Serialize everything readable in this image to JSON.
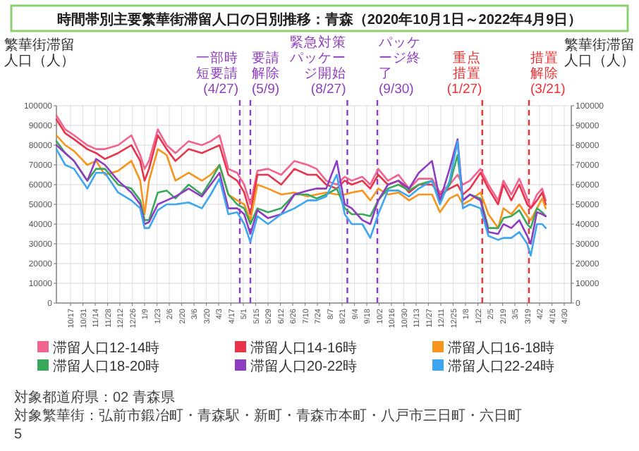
{
  "chart_data": {
    "type": "line",
    "title": "時間帯別主要繁華街滞留人口の日別推移：青森（2020年10月1日～2022年4月9日）",
    "ylabel": "繁華街滞留人口（人）",
    "y2label": "繁華街滞留人口（人）",
    "x": [
      "2020-10-01",
      "2020-10-11",
      "2020-10-21",
      "2020-11-05",
      "2020-11-15",
      "2020-11-25",
      "2020-12-10",
      "2020-12-25",
      "2021-01-04",
      "2021-01-09",
      "2021-01-14",
      "2021-01-24",
      "2021-02-03",
      "2021-02-13",
      "2021-02-28",
      "2021-03-15",
      "2021-03-25",
      "2021-04-04",
      "2021-04-14",
      "2021-04-24",
      "2021-05-02",
      "2021-05-09",
      "2021-05-17",
      "2021-05-29",
      "2021-06-13",
      "2021-06-28",
      "2021-07-13",
      "2021-07-23",
      "2021-08-03",
      "2021-08-15",
      "2021-08-24",
      "2021-09-01",
      "2021-09-13",
      "2021-09-22",
      "2021-10-01",
      "2021-10-12",
      "2021-10-24",
      "2021-11-05",
      "2021-11-16",
      "2021-12-01",
      "2021-12-10",
      "2021-12-21",
      "2021-12-30",
      "2022-01-05",
      "2022-01-13",
      "2022-01-25",
      "2022-02-03",
      "2022-02-14",
      "2022-02-20",
      "2022-03-01",
      "2022-03-10",
      "2022-03-19",
      "2022-03-23",
      "2022-03-30",
      "2022-04-05",
      "2022-04-09"
    ],
    "series": [
      {
        "name": "滞留人口12-14時",
        "color": "#f0648f",
        "values": [
          95000,
          88000,
          85000,
          80000,
          78000,
          78000,
          80000,
          85000,
          75000,
          68000,
          72000,
          88000,
          80000,
          76000,
          82000,
          80000,
          82000,
          85000,
          68000,
          66000,
          60000,
          50000,
          67000,
          68000,
          65000,
          72000,
          70000,
          68000,
          62000,
          60000,
          64000,
          62000,
          64000,
          60000,
          68000,
          62000,
          65000,
          58000,
          63000,
          63000,
          56000,
          60000,
          65000,
          60000,
          62000,
          68000,
          60000,
          52000,
          62000,
          55000,
          63000,
          53000,
          48000,
          55000,
          58000,
          52000
        ]
      },
      {
        "name": "滞留人口14-16時",
        "color": "#e8334a",
        "values": [
          93000,
          86000,
          83000,
          78000,
          76000,
          73000,
          76000,
          80000,
          72000,
          62000,
          68000,
          85000,
          78000,
          72000,
          78000,
          76000,
          78000,
          80000,
          65000,
          62000,
          56000,
          45000,
          65000,
          65000,
          60000,
          68000,
          65000,
          65000,
          60000,
          58000,
          62000,
          60000,
          62000,
          58000,
          65000,
          60000,
          62000,
          56000,
          60000,
          60000,
          55000,
          58000,
          60000,
          55000,
          58000,
          66000,
          58000,
          50000,
          60000,
          52000,
          60000,
          50000,
          48000,
          52000,
          56000,
          50000
        ]
      },
      {
        "name": "滞留人口16-18時",
        "color": "#f7941d",
        "values": [
          85000,
          80000,
          77000,
          70000,
          72000,
          65000,
          67000,
          72000,
          62000,
          45000,
          62000,
          78000,
          75000,
          62000,
          66000,
          62000,
          65000,
          70000,
          55000,
          52000,
          50000,
          42000,
          60000,
          58000,
          55000,
          56000,
          54000,
          55000,
          56000,
          55000,
          55000,
          56000,
          57000,
          52000,
          58000,
          55000,
          56000,
          52000,
          55000,
          55000,
          46000,
          53000,
          55000,
          50000,
          52000,
          56000,
          45000,
          38000,
          48000,
          45000,
          50000,
          44000,
          42000,
          48000,
          53000,
          48000
        ]
      },
      {
        "name": "滞留人口18-20時",
        "color": "#3aa85a",
        "values": [
          82000,
          76000,
          72000,
          62000,
          68000,
          68000,
          60000,
          58000,
          52000,
          42000,
          42000,
          56000,
          57000,
          53000,
          60000,
          55000,
          62000,
          70000,
          55000,
          50000,
          48000,
          40000,
          48000,
          46000,
          48000,
          55000,
          55000,
          53000,
          55000,
          58000,
          48000,
          45000,
          45000,
          44000,
          52000,
          58000,
          60000,
          57000,
          60000,
          62000,
          52000,
          60000,
          75000,
          52000,
          55000,
          53000,
          38000,
          38000,
          43000,
          44000,
          47000,
          40000,
          38000,
          48000,
          46000,
          44000
        ]
      },
      {
        "name": "滞留人口20-22時",
        "color": "#8e3cc0",
        "values": [
          80000,
          76000,
          72000,
          62000,
          73000,
          70000,
          62000,
          56000,
          50000,
          40000,
          41000,
          50000,
          52000,
          54000,
          58000,
          54000,
          60000,
          66000,
          48000,
          48000,
          45000,
          35000,
          47000,
          43000,
          45000,
          55000,
          57000,
          58000,
          58000,
          72000,
          50000,
          48000,
          42000,
          40000,
          52000,
          60000,
          62000,
          58000,
          66000,
          72000,
          52000,
          68000,
          83000,
          52000,
          55000,
          52000,
          36000,
          35000,
          40000,
          38000,
          42000,
          34000,
          30000,
          46000,
          45000,
          44000
        ]
      },
      {
        "name": "滞留人口22-24時",
        "color": "#3ea6f0",
        "values": [
          78000,
          70000,
          68000,
          58000,
          66000,
          66000,
          56000,
          52000,
          48000,
          38000,
          38000,
          47000,
          50000,
          50000,
          51000,
          48000,
          55000,
          63000,
          45000,
          46000,
          40000,
          31000,
          44000,
          40000,
          45000,
          48000,
          52000,
          52000,
          54000,
          65000,
          45000,
          40000,
          40000,
          33000,
          45000,
          57000,
          57000,
          54000,
          58000,
          62000,
          50000,
          62000,
          82000,
          48000,
          50000,
          48000,
          34000,
          32000,
          33000,
          33000,
          36000,
          30000,
          24000,
          40000,
          40000,
          38000
        ]
      }
    ],
    "xlim": [
      "2020-10-01",
      "2022-05-08"
    ],
    "xticks": [
      {
        "value": "2020-10-17",
        "label": "10/17"
      },
      {
        "value": "2020-10-31",
        "label": "10/31"
      },
      {
        "value": "2020-11-14",
        "label": "11/14"
      },
      {
        "value": "2020-11-28",
        "label": "11/28"
      },
      {
        "value": "2020-12-12",
        "label": "12/12"
      },
      {
        "value": "2020-12-26",
        "label": "12/26"
      },
      {
        "value": "2021-01-09",
        "label": "1/9"
      },
      {
        "value": "2021-01-23",
        "label": "1/23"
      },
      {
        "value": "2021-02-06",
        "label": "2/6"
      },
      {
        "value": "2021-02-20",
        "label": "2/20"
      },
      {
        "value": "2021-03-06",
        "label": "3/6"
      },
      {
        "value": "2021-03-20",
        "label": "3/20"
      },
      {
        "value": "2021-04-03",
        "label": "4/3"
      },
      {
        "value": "2021-04-17",
        "label": "4/17"
      },
      {
        "value": "2021-05-01",
        "label": "5/1"
      },
      {
        "value": "2021-05-15",
        "label": "5/15"
      },
      {
        "value": "2021-05-29",
        "label": "5/29"
      },
      {
        "value": "2021-06-12",
        "label": "6/12"
      },
      {
        "value": "2021-06-26",
        "label": "6/26"
      },
      {
        "value": "2021-07-10",
        "label": "7/10"
      },
      {
        "value": "2021-07-24",
        "label": "7/24"
      },
      {
        "value": "2021-08-07",
        "label": "8/7"
      },
      {
        "value": "2021-08-21",
        "label": "8/21"
      },
      {
        "value": "2021-09-04",
        "label": "9/4"
      },
      {
        "value": "2021-09-18",
        "label": "9/18"
      },
      {
        "value": "2021-10-02",
        "label": "10/2"
      },
      {
        "value": "2021-10-16",
        "label": "10/16"
      },
      {
        "value": "2021-10-30",
        "label": "10/30"
      },
      {
        "value": "2021-11-13",
        "label": "11/13"
      },
      {
        "value": "2021-11-27",
        "label": "11/27"
      },
      {
        "value": "2021-12-11",
        "label": "12/11"
      },
      {
        "value": "2021-12-25",
        "label": "12/25"
      },
      {
        "value": "2022-01-08",
        "label": "1/8"
      },
      {
        "value": "2022-01-22",
        "label": "1/22"
      },
      {
        "value": "2022-02-05",
        "label": "2/5"
      },
      {
        "value": "2022-02-19",
        "label": "2/19"
      },
      {
        "value": "2022-03-05",
        "label": "3/5"
      },
      {
        "value": "2022-03-19",
        "label": "3/19"
      },
      {
        "value": "2022-04-02",
        "label": "4/2"
      },
      {
        "value": "2022-04-16",
        "label": "4/16"
      },
      {
        "value": "2022-04-30",
        "label": "4/30"
      }
    ],
    "ylim": [
      0,
      100000
    ],
    "yticks": [
      0,
      10000,
      20000,
      30000,
      40000,
      50000,
      60000,
      70000,
      80000,
      90000,
      100000
    ],
    "y2lim": [
      0,
      100000
    ],
    "y2ticks": [
      0,
      10000,
      20000,
      30000,
      40000,
      50000,
      60000,
      70000,
      80000,
      90000,
      100000
    ],
    "ref_lines": [
      {
        "axis": "x",
        "value": "2021-04-27",
        "label": "一部時短要請(4/27)",
        "color": "#8e3cc0",
        "line_style": "dashed"
      },
      {
        "axis": "x",
        "value": "2021-05-09",
        "label": "要請解除(5/9)",
        "color": "#8e3cc0",
        "line_style": "dashed"
      },
      {
        "axis": "x",
        "value": "2021-08-27",
        "label": "緊急対策パッケージ開始(8/27)",
        "color": "#8e3cc0",
        "line_style": "dashed"
      },
      {
        "axis": "x",
        "value": "2021-09-30",
        "label": "パッケージ終了(9/30)",
        "color": "#8e3cc0",
        "line_style": "dashed"
      },
      {
        "axis": "x",
        "value": "2022-01-27",
        "label": "重点措置(1/27)",
        "color": "#f03030",
        "line_style": "dashed"
      },
      {
        "axis": "x",
        "value": "2022-03-21",
        "label": "措置解除(3/21)",
        "color": "#f03030",
        "line_style": "dashed"
      }
    ],
    "annotations": [
      "対象都道府県：02 青森県",
      "対象繁華街：弘前市鍛冶町・青森駅・新町・青森市本町・八戸市三日町・六日町",
      "5"
    ],
    "grid": true,
    "legend": "bottom",
    "line_style": "solid"
  }
}
